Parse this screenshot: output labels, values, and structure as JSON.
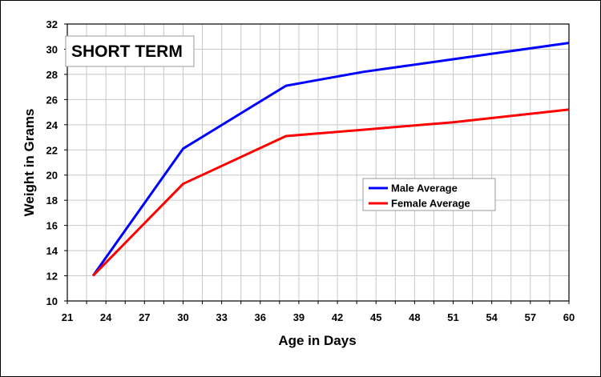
{
  "chart_data": {
    "type": "line",
    "title": "SHORT TERM",
    "xlabel": "Age in Days",
    "ylabel": "Weight in Grams",
    "xlim": [
      21,
      60
    ],
    "ylim": [
      10,
      32
    ],
    "x_ticks": [
      21,
      24,
      27,
      30,
      33,
      36,
      39,
      42,
      45,
      48,
      51,
      54,
      57,
      60
    ],
    "y_ticks": [
      10,
      12,
      14,
      16,
      18,
      20,
      22,
      24,
      26,
      28,
      30,
      32
    ],
    "x_minor_step": 1.5,
    "grid": true,
    "legend_position": "center-right",
    "series": [
      {
        "name": "Male Average",
        "color": "#0000ff",
        "points": [
          [
            23,
            12.0
          ],
          [
            30,
            22.1
          ],
          [
            38,
            27.1
          ],
          [
            44,
            28.2
          ],
          [
            51,
            29.2
          ],
          [
            60,
            30.5
          ]
        ]
      },
      {
        "name": "Female Average",
        "color": "#ff0000",
        "points": [
          [
            23,
            12.0
          ],
          [
            30,
            19.3
          ],
          [
            38,
            23.1
          ],
          [
            44,
            23.6
          ],
          [
            51,
            24.2
          ],
          [
            60,
            25.2
          ]
        ]
      }
    ]
  }
}
